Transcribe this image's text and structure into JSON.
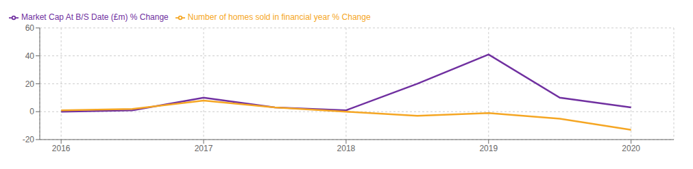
{
  "chart_data": {
    "type": "line",
    "x": [
      2016,
      2016.5,
      2017,
      2017.5,
      2018,
      2018.5,
      2019,
      2019.5,
      2020
    ],
    "series": [
      {
        "name": "Market Cap At B/S Date (£m) % Change",
        "color": "#7030a0",
        "values": [
          0,
          1,
          10,
          3,
          1,
          20,
          41,
          10,
          3
        ]
      },
      {
        "name": "Number of homes sold in financial year % Change",
        "color": "#f5a623",
        "values": [
          1,
          2,
          8,
          3,
          0,
          -3,
          -1,
          -5,
          -13
        ]
      }
    ],
    "xlim": [
      2015.85,
      2020.3
    ],
    "xticks": [
      2016,
      2017,
      2018,
      2019,
      2020
    ],
    "ylim": [
      -20,
      60
    ],
    "yticks": [
      -20,
      0,
      20,
      40,
      60
    ],
    "grid": true,
    "legend": "upper left"
  }
}
